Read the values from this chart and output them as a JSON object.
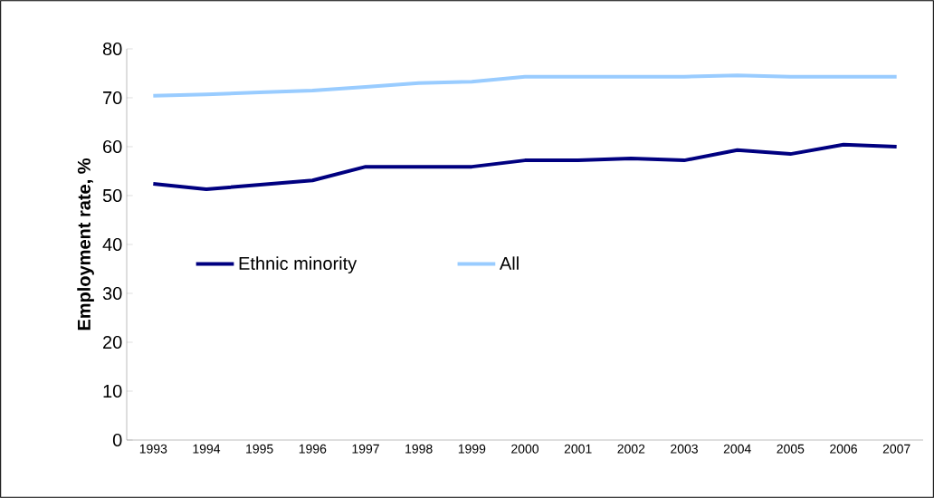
{
  "chart_data": {
    "type": "line",
    "ylabel": "Employment rate, %",
    "categories": [
      "1993",
      "1994",
      "1995",
      "1996",
      "1997",
      "1998",
      "1999",
      "2000",
      "2001",
      "2002",
      "2003",
      "2004",
      "2005",
      "2006",
      "2007"
    ],
    "series": [
      {
        "name": "Ethnic minority",
        "color": "#000080",
        "values": [
          52.4,
          51.3,
          52.2,
          53.1,
          55.9,
          55.9,
          55.9,
          57.2,
          57.2,
          57.6,
          57.2,
          59.3,
          58.5,
          60.4,
          60.0
        ]
      },
      {
        "name": "All",
        "color": "#99ccff",
        "values": [
          70.4,
          70.7,
          71.1,
          71.5,
          72.2,
          73.0,
          73.3,
          74.3,
          74.3,
          74.3,
          74.3,
          74.6,
          74.3,
          74.3,
          74.3
        ]
      }
    ],
    "ylim": [
      0,
      80
    ],
    "yticks": [
      0,
      10,
      20,
      30,
      40,
      50,
      60,
      70,
      80
    ],
    "grid": false,
    "legend": "left",
    "marker": "none",
    "line_style": "solid"
  }
}
